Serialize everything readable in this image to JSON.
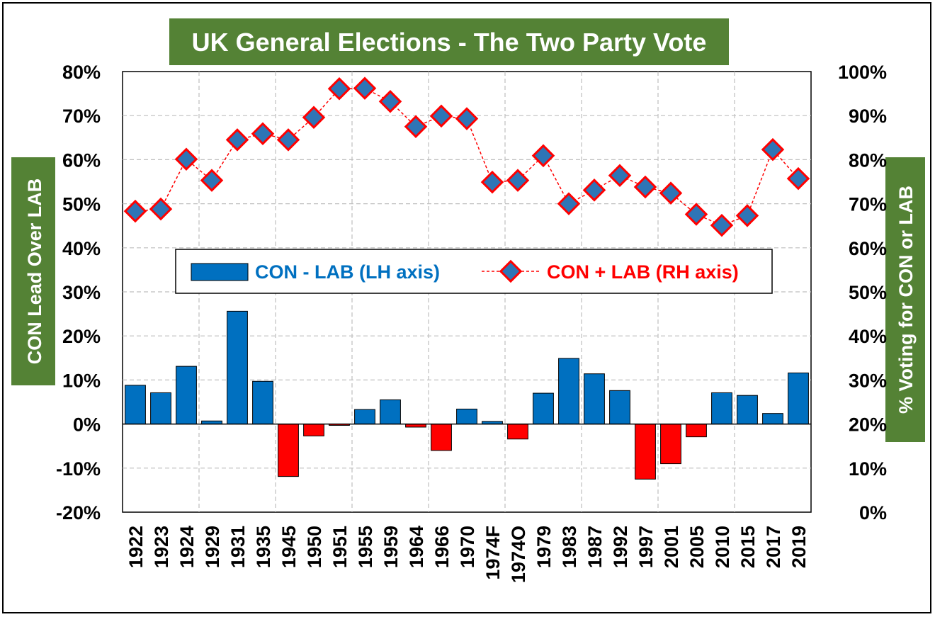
{
  "chart_data": {
    "type": "bar",
    "title": "UK General Elections - The Two Party Vote",
    "ylabel_left": "CON Lead Over LAB",
    "ylabel_right": "% Voting for CON or LAB",
    "ylim_left": [
      -0.2,
      0.8
    ],
    "ylim_right": [
      0,
      1.0
    ],
    "yticks_left": [
      "-20%",
      "-10%",
      "0%",
      "10%",
      "20%",
      "30%",
      "40%",
      "50%",
      "60%",
      "70%",
      "80%"
    ],
    "yticks_right": [
      "0%",
      "10%",
      "20%",
      "30%",
      "40%",
      "50%",
      "60%",
      "70%",
      "80%",
      "90%",
      "100%"
    ],
    "categories": [
      "1922",
      "1923",
      "1924",
      "1929",
      "1931",
      "1935",
      "1945",
      "1950",
      "1951",
      "1955",
      "1959",
      "1964",
      "1966",
      "1970",
      "1974F",
      "1974O",
      "1979",
      "1983",
      "1987",
      "1992",
      "1997",
      "2001",
      "2005",
      "2010",
      "2015",
      "2017",
      "2019"
    ],
    "series": [
      {
        "name": "CON - LAB (LH axis)",
        "kind": "bar",
        "axis": "left",
        "values": [
          0.088,
          0.071,
          0.131,
          0.007,
          0.256,
          0.097,
          -0.119,
          -0.027,
          -0.003,
          0.033,
          0.055,
          -0.007,
          -0.06,
          0.034,
          0.006,
          -0.034,
          0.07,
          0.149,
          0.114,
          0.076,
          -0.125,
          -0.09,
          -0.029,
          0.071,
          0.065,
          0.024,
          0.116
        ]
      },
      {
        "name": "CON + LAB (RH axis)",
        "kind": "line",
        "axis": "right",
        "values": [
          0.683,
          0.688,
          0.801,
          0.753,
          0.845,
          0.859,
          0.845,
          0.896,
          0.961,
          0.962,
          0.932,
          0.875,
          0.899,
          0.893,
          0.749,
          0.753,
          0.809,
          0.7,
          0.731,
          0.764,
          0.738,
          0.724,
          0.676,
          0.651,
          0.673,
          0.823,
          0.757
        ]
      }
    ],
    "colors": {
      "positive_bar": "#0070c0",
      "negative_bar": "#ff0000",
      "line": "#ff0000",
      "marker_fill": "#2e75b6",
      "title_bg": "#548235",
      "axis_label_bg": "#548235"
    },
    "grid": true,
    "legend_position": "center"
  }
}
